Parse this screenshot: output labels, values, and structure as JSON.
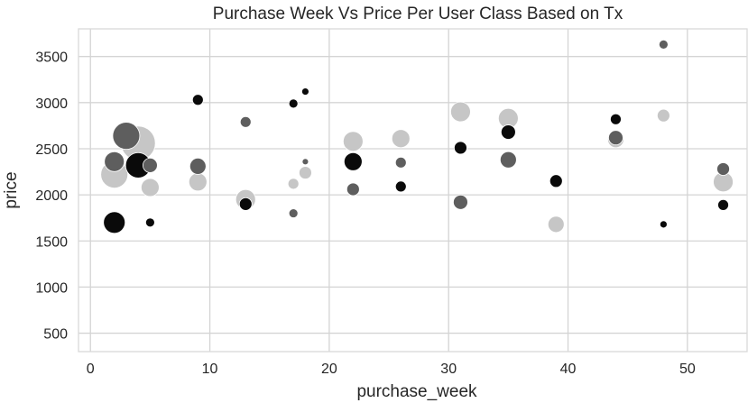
{
  "chart_data": {
    "type": "scatter",
    "title": "Purchase Week Vs Price Per User Class Based on Tx",
    "xlabel": "purchase_week",
    "ylabel": "price",
    "xlim": [
      -1,
      55
    ],
    "ylim": [
      300,
      3800
    ],
    "xticks": [
      0,
      10,
      20,
      30,
      40,
      50
    ],
    "yticks": [
      500,
      1000,
      1500,
      2000,
      2500,
      3000,
      3500
    ],
    "grid": true,
    "legend": "none",
    "colors": {
      "black": "#0a0a0a",
      "dark_gray": "#5e5e5e",
      "light_gray": "#c6c6c6"
    },
    "points": [
      {
        "x": 2,
        "y": 1700,
        "tone": "black",
        "size": 12
      },
      {
        "x": 2,
        "y": 2220,
        "tone": "light_gray",
        "size": 15
      },
      {
        "x": 2,
        "y": 2360,
        "tone": "dark_gray",
        "size": 11
      },
      {
        "x": 3,
        "y": 2640,
        "tone": "dark_gray",
        "size": 15
      },
      {
        "x": 4,
        "y": 2560,
        "tone": "light_gray",
        "size": 19
      },
      {
        "x": 4,
        "y": 2320,
        "tone": "black",
        "size": 14
      },
      {
        "x": 5,
        "y": 2320,
        "tone": "dark_gray",
        "size": 8
      },
      {
        "x": 5,
        "y": 2080,
        "tone": "light_gray",
        "size": 10
      },
      {
        "x": 5,
        "y": 1700,
        "tone": "black",
        "size": 5
      },
      {
        "x": 9,
        "y": 3030,
        "tone": "black",
        "size": 6
      },
      {
        "x": 9,
        "y": 2310,
        "tone": "dark_gray",
        "size": 9
      },
      {
        "x": 9,
        "y": 2140,
        "tone": "light_gray",
        "size": 10
      },
      {
        "x": 13,
        "y": 2790,
        "tone": "dark_gray",
        "size": 6
      },
      {
        "x": 13,
        "y": 1950,
        "tone": "light_gray",
        "size": 11
      },
      {
        "x": 13,
        "y": 1900,
        "tone": "black",
        "size": 7
      },
      {
        "x": 17,
        "y": 2990,
        "tone": "black",
        "size": 5
      },
      {
        "x": 17,
        "y": 2120,
        "tone": "light_gray",
        "size": 6
      },
      {
        "x": 17,
        "y": 1800,
        "tone": "dark_gray",
        "size": 5
      },
      {
        "x": 18,
        "y": 3120,
        "tone": "black",
        "size": 4
      },
      {
        "x": 18,
        "y": 2360,
        "tone": "dark_gray",
        "size": 3.5
      },
      {
        "x": 18,
        "y": 2240,
        "tone": "light_gray",
        "size": 7
      },
      {
        "x": 22,
        "y": 2580,
        "tone": "light_gray",
        "size": 11
      },
      {
        "x": 22,
        "y": 2360,
        "tone": "black",
        "size": 10
      },
      {
        "x": 22,
        "y": 2060,
        "tone": "dark_gray",
        "size": 7
      },
      {
        "x": 26,
        "y": 2610,
        "tone": "light_gray",
        "size": 10
      },
      {
        "x": 26,
        "y": 2350,
        "tone": "dark_gray",
        "size": 6
      },
      {
        "x": 26,
        "y": 2090,
        "tone": "black",
        "size": 6
      },
      {
        "x": 31,
        "y": 2900,
        "tone": "light_gray",
        "size": 11
      },
      {
        "x": 31,
        "y": 2510,
        "tone": "black",
        "size": 7
      },
      {
        "x": 31,
        "y": 1920,
        "tone": "dark_gray",
        "size": 8
      },
      {
        "x": 35,
        "y": 2830,
        "tone": "light_gray",
        "size": 11
      },
      {
        "x": 35,
        "y": 2680,
        "tone": "black",
        "size": 8
      },
      {
        "x": 35,
        "y": 2380,
        "tone": "dark_gray",
        "size": 9
      },
      {
        "x": 39,
        "y": 2150,
        "tone": "black",
        "size": 7
      },
      {
        "x": 39,
        "y": 1680,
        "tone": "light_gray",
        "size": 9
      },
      {
        "x": 44,
        "y": 2820,
        "tone": "black",
        "size": 6
      },
      {
        "x": 44,
        "y": 2620,
        "tone": "dark_gray",
        "size": 8
      },
      {
        "x": 44,
        "y": 2600,
        "tone": "light_gray",
        "size": 9
      },
      {
        "x": 48,
        "y": 3630,
        "tone": "dark_gray",
        "size": 5
      },
      {
        "x": 48,
        "y": 2860,
        "tone": "light_gray",
        "size": 7
      },
      {
        "x": 48,
        "y": 1680,
        "tone": "black",
        "size": 4
      },
      {
        "x": 53,
        "y": 2280,
        "tone": "dark_gray",
        "size": 7
      },
      {
        "x": 53,
        "y": 2140,
        "tone": "light_gray",
        "size": 11
      },
      {
        "x": 53,
        "y": 1890,
        "tone": "black",
        "size": 6
      }
    ]
  }
}
